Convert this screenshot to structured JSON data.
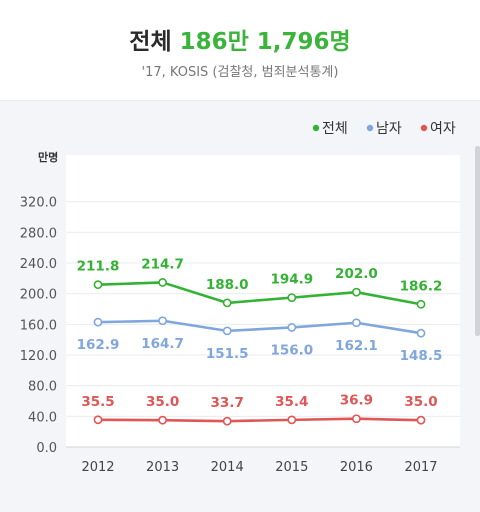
{
  "header": {
    "title_prefix": "전체",
    "title_value": "186만 1,796명",
    "subtitle": "'17, KOSIS (검찰청, 범죄분석통계)"
  },
  "chart_data": {
    "type": "line",
    "unit_label": "만명",
    "categories": [
      "2012",
      "2013",
      "2014",
      "2015",
      "2016",
      "2017"
    ],
    "y_ticks": [
      "0.0",
      "40.0",
      "80.0",
      "120.0",
      "160.0",
      "200.0",
      "240.0",
      "280.0",
      "320.0"
    ],
    "ylim": [
      0,
      340
    ],
    "grid": true,
    "legend_position": "top-right",
    "series": [
      {
        "name": "전체",
        "color": "#33b233",
        "values": [
          211.8,
          214.7,
          188.0,
          194.9,
          202.0,
          186.2
        ],
        "labels": [
          "211.8",
          "214.7",
          "188.0",
          "194.9",
          "202.0",
          "186.2"
        ]
      },
      {
        "name": "남자",
        "color": "#7fa6dd",
        "values": [
          162.9,
          164.7,
          151.5,
          156.0,
          162.1,
          148.5
        ],
        "labels": [
          "162.9",
          "164.7",
          "151.5",
          "156.0",
          "162.1",
          "148.5"
        ]
      },
      {
        "name": "여자",
        "color": "#e05555",
        "values": [
          35.5,
          35.0,
          33.7,
          35.4,
          36.9,
          35.0
        ],
        "labels": [
          "35.5",
          "35.0",
          "33.7",
          "35.4",
          "36.9",
          "35.0"
        ]
      }
    ]
  }
}
